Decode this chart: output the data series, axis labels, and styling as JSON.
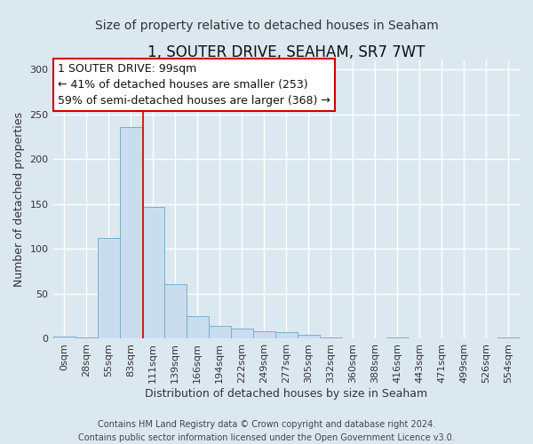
{
  "title": "1, SOUTER DRIVE, SEAHAM, SR7 7WT",
  "subtitle": "Size of property relative to detached houses in Seaham",
  "xlabel": "Distribution of detached houses by size in Seaham",
  "ylabel": "Number of detached properties",
  "bar_labels": [
    "0sqm",
    "28sqm",
    "55sqm",
    "83sqm",
    "111sqm",
    "139sqm",
    "166sqm",
    "194sqm",
    "222sqm",
    "249sqm",
    "277sqm",
    "305sqm",
    "332sqm",
    "360sqm",
    "388sqm",
    "416sqm",
    "443sqm",
    "471sqm",
    "499sqm",
    "526sqm",
    "554sqm"
  ],
  "bar_values": [
    2,
    1,
    112,
    236,
    147,
    61,
    25,
    14,
    11,
    8,
    7,
    4,
    1,
    0,
    0,
    1,
    0,
    0,
    0,
    0,
    1
  ],
  "bar_color": "#c9ddef",
  "bar_edge_color": "#7aafc9",
  "ylim": [
    0,
    310
  ],
  "yticks": [
    0,
    50,
    100,
    150,
    200,
    250,
    300
  ],
  "annotation_box_text": "1 SOUTER DRIVE: 99sqm\n← 41% of detached houses are smaller (253)\n59% of semi-detached houses are larger (368) →",
  "annotation_box_color": "#ffffff",
  "annotation_box_edge_color": "#cc0000",
  "property_line_x": 3.57,
  "property_line_color": "#cc0000",
  "footer_line1": "Contains HM Land Registry data © Crown copyright and database right 2024.",
  "footer_line2": "Contains public sector information licensed under the Open Government Licence v3.0.",
  "bg_color": "#dce8f0",
  "grid_color": "#ffffff",
  "title_fontsize": 12,
  "subtitle_fontsize": 10,
  "axis_label_fontsize": 9,
  "tick_fontsize": 8,
  "annotation_fontsize": 9,
  "footer_fontsize": 7
}
